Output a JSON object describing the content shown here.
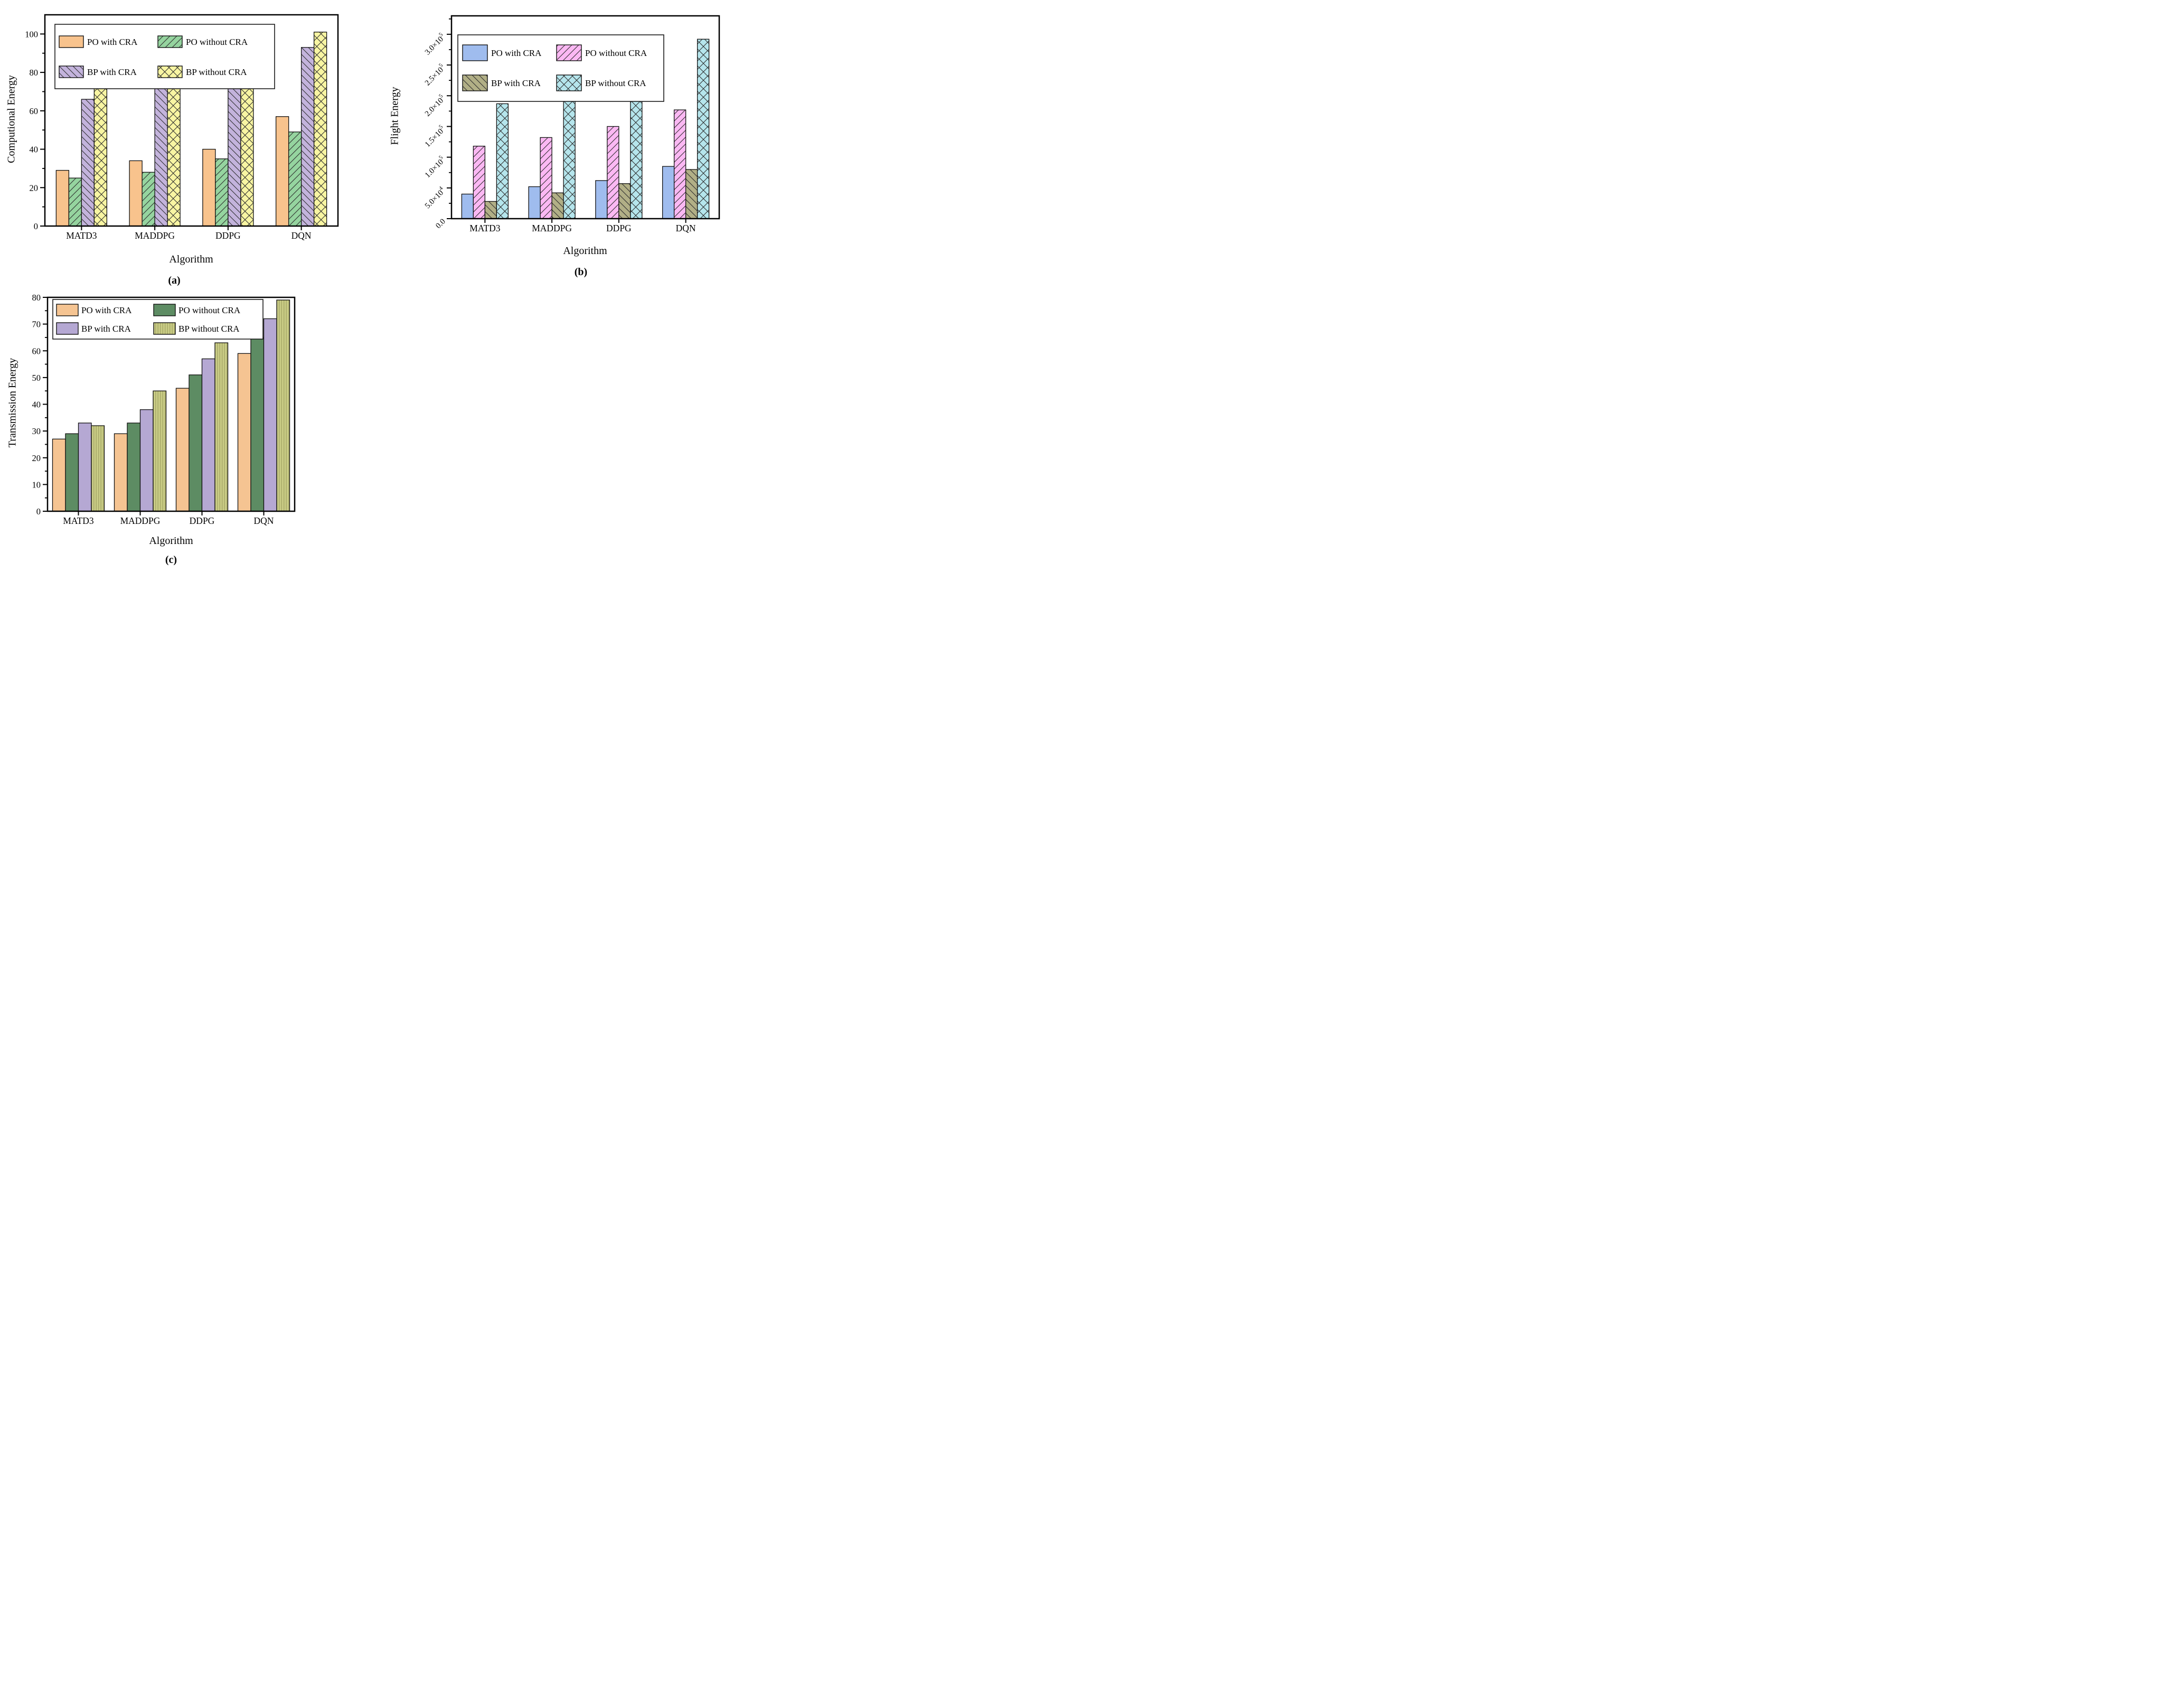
{
  "figure": {
    "description": "Three grouped bar charts comparing energy of algorithms",
    "background_color": "#ffffff"
  },
  "chart_data": [
    {
      "id": "a",
      "type": "bar",
      "caption": "(a)",
      "xlabel": "Algorithm",
      "ylabel": "Computional Energy",
      "categories": [
        "MATD3",
        "MADDPG",
        "DDPG",
        "DQN"
      ],
      "ylim": [
        0,
        110
      ],
      "yticks": [
        {
          "v": 0,
          "label": "0"
        },
        {
          "v": 20,
          "label": "20"
        },
        {
          "v": 40,
          "label": "40"
        },
        {
          "v": 60,
          "label": "60"
        },
        {
          "v": 80,
          "label": "80"
        },
        {
          "v": 100,
          "label": "100"
        }
      ],
      "minor_step": 10,
      "grid": "off",
      "legend_position": "top-left-inside",
      "series": [
        {
          "name": "PO with CRA",
          "color": "#F8C38D",
          "pattern": "none",
          "values": [
            29,
            34,
            40,
            57
          ]
        },
        {
          "name": "PO without CRA",
          "color": "#95D49F",
          "pattern": "diag_up",
          "values": [
            25,
            28,
            35,
            49
          ]
        },
        {
          "name": "BP with CRA",
          "color": "#C3B3DC",
          "pattern": "diag_down",
          "values": [
            66,
            74,
            85,
            93
          ]
        },
        {
          "name": "BP without CRA",
          "color": "#F8F5A2",
          "pattern": "cross",
          "values": [
            72,
            76,
            88,
            101
          ]
        }
      ]
    },
    {
      "id": "b",
      "type": "bar",
      "caption": "(b)",
      "xlabel": "Algorithm",
      "ylabel": "Flight Energy",
      "categories": [
        "MATD3",
        "MADDPG",
        "DDPG",
        "DQN"
      ],
      "ylim": [
        0,
        330000
      ],
      "yticks": [
        {
          "v": 0,
          "label": "0.0"
        },
        {
          "v": 50000,
          "label": "5.0×10^4"
        },
        {
          "v": 100000,
          "label": "1.0×10^5"
        },
        {
          "v": 150000,
          "label": "1.5×10^5"
        },
        {
          "v": 200000,
          "label": "2.0×10^5"
        },
        {
          "v": 250000,
          "label": "2.5×10^5"
        },
        {
          "v": 300000,
          "label": "3.0×10^5"
        }
      ],
      "minor_step": 25000,
      "ytick_rotation": -45,
      "grid": "off",
      "legend_position": "top-left-inside",
      "series": [
        {
          "name": "PO with CRA",
          "color": "#9FBCEE",
          "pattern": "none",
          "values": [
            40000,
            52000,
            62000,
            85000
          ]
        },
        {
          "name": "PO without CRA",
          "color": "#FBB8F3",
          "pattern": "diag_up",
          "values": [
            118000,
            132000,
            150000,
            177000
          ]
        },
        {
          "name": "BP with CRA",
          "color": "#B1AF86",
          "pattern": "diag_down",
          "values": [
            28000,
            42000,
            57000,
            80000
          ]
        },
        {
          "name": "BP without CRA",
          "color": "#B5E5EC",
          "pattern": "cross",
          "values": [
            187000,
            195000,
            218000,
            292000
          ]
        }
      ]
    },
    {
      "id": "c",
      "type": "bar",
      "caption": "(c)",
      "xlabel": "Algorithm",
      "ylabel": "Transmission Energy",
      "categories": [
        "MATD3",
        "MADDPG",
        "DDPG",
        "DQN"
      ],
      "ylim": [
        0,
        80
      ],
      "yticks": [
        {
          "v": 0,
          "label": "0"
        },
        {
          "v": 10,
          "label": "10"
        },
        {
          "v": 20,
          "label": "20"
        },
        {
          "v": 30,
          "label": "30"
        },
        {
          "v": 40,
          "label": "40"
        },
        {
          "v": 50,
          "label": "50"
        },
        {
          "v": 60,
          "label": "60"
        },
        {
          "v": 70,
          "label": "70"
        },
        {
          "v": 80,
          "label": "80"
        }
      ],
      "minor_step": 5,
      "grid": "off",
      "legend_position": "top-left-inside",
      "series": [
        {
          "name": "PO with CRA",
          "color": "#F5C492",
          "pattern": "none",
          "values": [
            27,
            29,
            46,
            59
          ]
        },
        {
          "name": "PO without CRA",
          "color": "#5D8C63",
          "pattern": "none",
          "values": [
            29,
            33,
            51,
            65
          ]
        },
        {
          "name": "BP with CRA",
          "color": "#B5A8D3",
          "pattern": "none",
          "values": [
            33,
            38,
            57,
            72
          ]
        },
        {
          "name": "BP without CRA",
          "color": "#C9CC85",
          "pattern": "vlines",
          "values": [
            32,
            45,
            63,
            79
          ]
        }
      ]
    }
  ]
}
